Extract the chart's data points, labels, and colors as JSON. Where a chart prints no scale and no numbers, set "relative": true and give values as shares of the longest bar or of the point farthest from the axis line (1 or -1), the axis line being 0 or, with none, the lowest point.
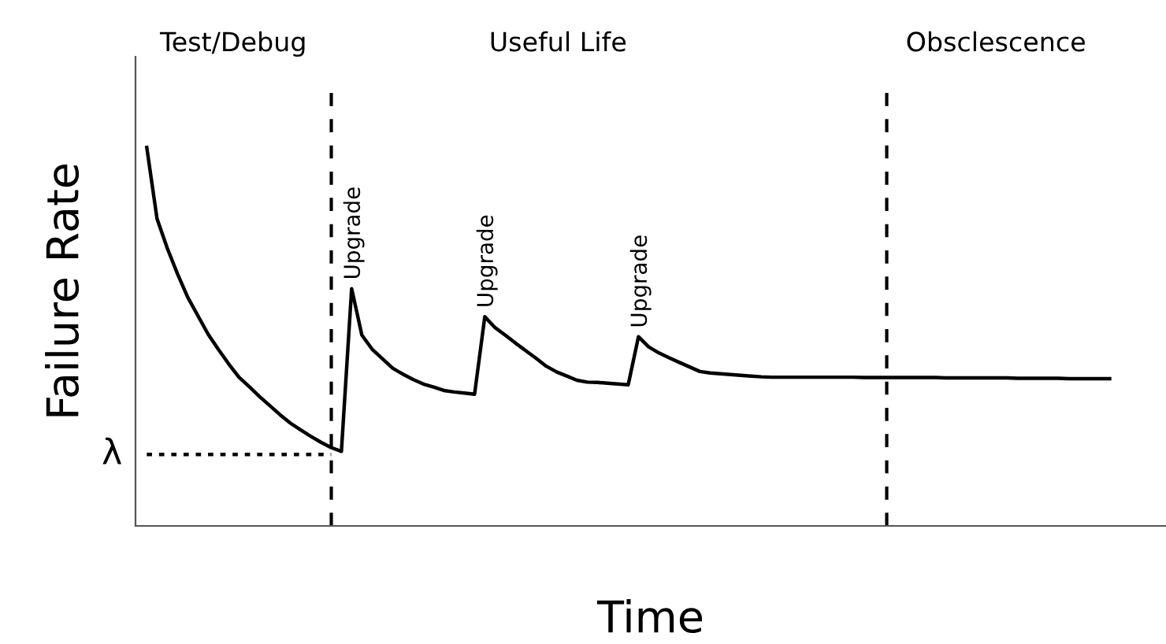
{
  "chart_data": {
    "type": "line",
    "relative": true,
    "xlabel": "Time",
    "ylabel": "Failure Rate",
    "legend": false,
    "marker": "none",
    "categories": [
      null,
      null,
      null,
      null,
      null,
      null,
      null,
      null,
      null,
      null,
      null,
      null,
      null,
      null,
      null,
      null,
      null,
      null,
      null,
      null,
      null,
      null,
      null,
      null,
      null,
      null,
      null,
      null,
      null,
      null,
      null,
      null,
      null,
      null,
      null,
      null,
      null,
      null,
      null,
      null,
      null,
      null,
      null,
      null,
      null,
      null,
      null,
      null,
      null,
      null,
      null,
      null,
      null,
      null,
      null,
      null,
      null,
      null,
      null,
      null,
      null,
      null,
      null,
      null,
      null,
      null,
      null,
      null,
      null,
      null,
      null,
      null,
      null,
      null,
      null,
      null,
      null,
      null,
      null,
      null,
      null,
      null,
      null,
      null,
      null,
      null,
      null,
      null,
      null,
      null,
      null,
      null,
      null,
      null,
      null
    ],
    "series": [
      {
        "color": "#000000",
        "line_style": "solid",
        "values": [
          1.0,
          0.812,
          0.734,
          0.666,
          0.604,
          0.555,
          0.506,
          0.466,
          0.428,
          0.393,
          0.368,
          0.342,
          0.318,
          0.294,
          0.272,
          0.254,
          0.237,
          0.221,
          0.207,
          0.197,
          0.627,
          0.504,
          0.467,
          0.442,
          0.417,
          0.401,
          0.387,
          0.375,
          0.367,
          0.358,
          0.354,
          0.351,
          0.348,
          0.553,
          0.524,
          0.504,
          0.483,
          0.463,
          0.443,
          0.422,
          0.407,
          0.396,
          0.385,
          0.38,
          0.379,
          0.377,
          0.375,
          0.373,
          0.5,
          0.473,
          0.457,
          0.444,
          0.432,
          0.42,
          0.408,
          0.404,
          0.402,
          0.4,
          0.398,
          0.396,
          0.394,
          0.393,
          0.393,
          0.393,
          0.393,
          0.393,
          0.393,
          0.393,
          0.393,
          0.393,
          0.392,
          0.392,
          0.392,
          0.392,
          0.392,
          0.392,
          0.392,
          0.392,
          0.391,
          0.391,
          0.391,
          0.391,
          0.391,
          0.391,
          0.391,
          0.39,
          0.39,
          0.39,
          0.39,
          0.39,
          0.389,
          0.389,
          0.389,
          0.389,
          0.389
        ]
      },
      {
        "color": "#000000",
        "line_style": "dotted",
        "values": [
          0.189,
          0.189,
          0.189,
          0.189,
          0.189,
          0.189,
          0.189,
          0.189,
          0.189,
          0.189,
          0.189,
          0.189,
          0.189,
          0.189,
          0.189,
          0.189,
          0.189,
          0.189,
          0.189,
          null,
          null,
          null,
          null,
          null,
          null,
          null,
          null,
          null,
          null,
          null,
          null,
          null,
          null,
          null,
          null,
          null,
          null,
          null,
          null,
          null,
          null,
          null,
          null,
          null,
          null,
          null,
          null,
          null,
          null,
          null,
          null,
          null,
          null,
          null,
          null,
          null,
          null,
          null,
          null,
          null,
          null,
          null,
          null,
          null,
          null,
          null,
          null,
          null,
          null,
          null,
          null,
          null,
          null,
          null,
          null,
          null,
          null,
          null,
          null,
          null,
          null,
          null,
          null,
          null,
          null,
          null,
          null,
          null,
          null,
          null,
          null,
          null,
          null,
          null,
          null
        ]
      }
    ],
    "annotations": [
      "Test/Debug",
      "Useful Life",
      "Obsclescence",
      "λ",
      {
        "text": "Upgrade",
        "y": 0.627
      },
      {
        "text": "Upgrade",
        "y": 0.553
      },
      {
        "text": "Upgrade",
        "y": 0.5
      }
    ]
  }
}
